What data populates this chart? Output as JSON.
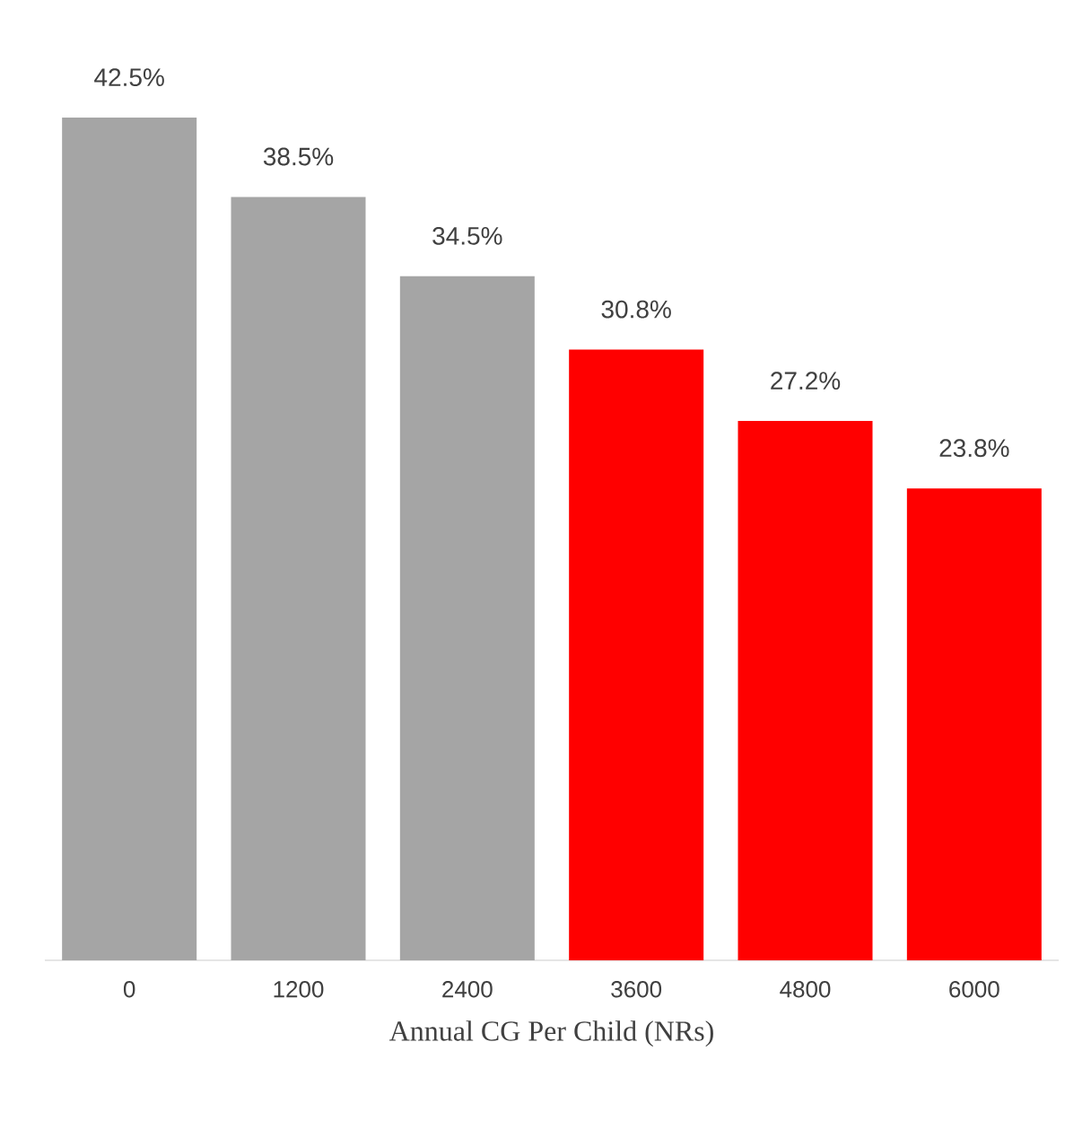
{
  "chart_data": {
    "type": "bar",
    "xlabel": "Annual CG Per Child (NRs)",
    "categories": [
      "0",
      "1200",
      "2400",
      "3600",
      "4800",
      "6000"
    ],
    "values": [
      42.5,
      38.5,
      34.5,
      30.8,
      27.2,
      23.8
    ],
    "value_labels": [
      "42.5%",
      "38.5%",
      "34.5%",
      "30.8%",
      "27.2%",
      "23.8%"
    ],
    "colors": [
      "#a5a5a5",
      "#a5a5a5",
      "#a5a5a5",
      "#ff0000",
      "#ff0000",
      "#ff0000"
    ]
  }
}
